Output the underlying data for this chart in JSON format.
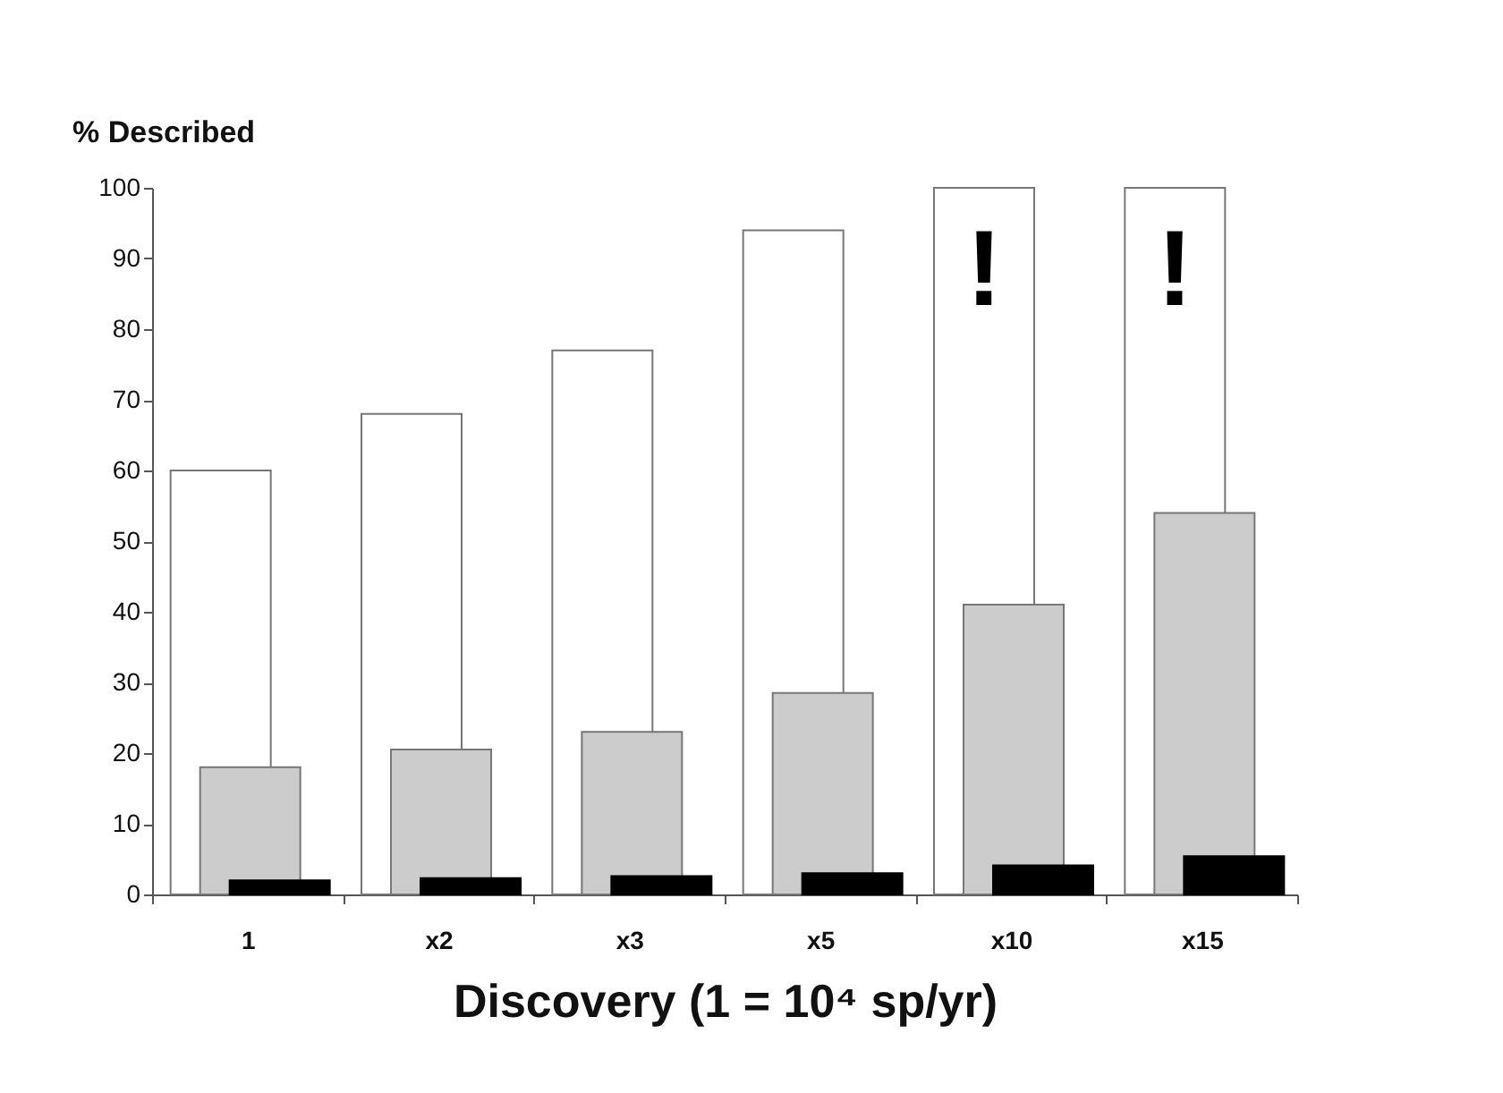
{
  "chart_data": {
    "type": "bar",
    "ylabel": "% Described",
    "xlabel": "Discovery (1 = 10⁴ sp/yr)",
    "categories": [
      "1",
      "x2",
      "x3",
      "x5",
      "x10",
      "x15"
    ],
    "series": [
      {
        "color": "#ffffff",
        "values": [
          60,
          68,
          77,
          94,
          100,
          100
        ]
      },
      {
        "color": "#cccccc",
        "values": [
          18,
          20.5,
          23,
          28.5,
          41,
          54
        ]
      },
      {
        "color": "#000000",
        "values": [
          2,
          2.3,
          2.6,
          3,
          4.1,
          5.4
        ]
      }
    ],
    "annotations": [
      "!",
      "!"
    ],
    "ylim": [
      0,
      100
    ],
    "yticks": [
      0,
      10,
      20,
      30,
      40,
      50,
      60,
      70,
      80,
      90,
      100
    ],
    "grid": false
  }
}
